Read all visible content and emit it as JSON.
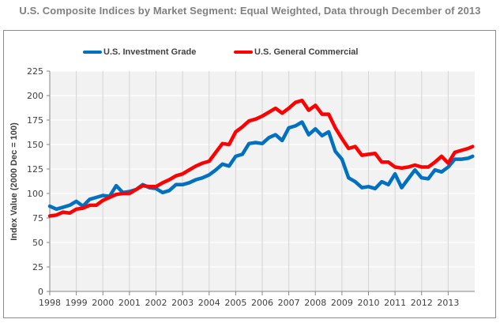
{
  "chart_data": {
    "type": "line",
    "title": "U.S. Composite Indices by Market Segment: Equal Weighted, Data through December of 2013",
    "xlabel": "",
    "ylabel": "Index Value (2000 Dec = 100)",
    "ylim": [
      0,
      225
    ],
    "yticks": [
      0,
      25,
      50,
      75,
      100,
      125,
      150,
      175,
      200,
      225
    ],
    "xlim": [
      1998,
      2014
    ],
    "xticks": [
      "1998",
      "1999",
      "2000",
      "2001",
      "2002",
      "2003",
      "2004",
      "2005",
      "2006",
      "2007",
      "2008",
      "2009",
      "2010",
      "2011",
      "2012",
      "2013"
    ],
    "grid": "on",
    "legend_position": "top",
    "series": [
      {
        "name": "U.S. Investment Grade",
        "color": "#0070c0",
        "x": [
          1998.0,
          1998.25,
          1998.5,
          1998.75,
          1999.0,
          1999.25,
          1999.5,
          1999.75,
          2000.0,
          2000.25,
          2000.5,
          2000.75,
          2001.0,
          2001.25,
          2001.5,
          2001.75,
          2002.0,
          2002.25,
          2002.5,
          2002.75,
          2003.0,
          2003.25,
          2003.5,
          2003.75,
          2004.0,
          2004.25,
          2004.5,
          2004.75,
          2005.0,
          2005.25,
          2005.5,
          2005.75,
          2006.0,
          2006.25,
          2006.5,
          2006.75,
          2007.0,
          2007.25,
          2007.5,
          2007.75,
          2008.0,
          2008.25,
          2008.5,
          2008.75,
          2009.0,
          2009.25,
          2009.5,
          2009.75,
          2010.0,
          2010.25,
          2010.5,
          2010.75,
          2011.0,
          2011.25,
          2011.5,
          2011.75,
          2012.0,
          2012.25,
          2012.5,
          2012.75,
          2013.0,
          2013.25,
          2013.5,
          2013.75,
          2013.92
        ],
        "values": [
          87,
          84,
          86,
          88,
          92,
          87,
          94,
          96,
          98,
          97,
          108,
          101,
          102,
          104,
          109,
          106,
          105,
          101,
          103,
          109,
          109,
          111,
          114,
          116,
          119,
          124,
          130,
          128,
          138,
          140,
          151,
          152,
          151,
          157,
          160,
          154,
          167,
          169,
          173,
          160,
          166,
          159,
          163,
          143,
          135,
          116,
          112,
          106,
          107,
          105,
          112,
          109,
          120,
          106,
          115,
          124,
          116,
          115,
          124,
          122,
          127,
          135,
          135,
          136,
          138
        ]
      },
      {
        "name": "U.S. General Commercial",
        "color": "#ff0000",
        "x": [
          1998.0,
          1998.25,
          1998.5,
          1998.75,
          1999.0,
          1999.25,
          1999.5,
          1999.75,
          2000.0,
          2000.25,
          2000.5,
          2000.75,
          2001.0,
          2001.25,
          2001.5,
          2001.75,
          2002.0,
          2002.25,
          2002.5,
          2002.75,
          2003.0,
          2003.25,
          2003.5,
          2003.75,
          2004.0,
          2004.25,
          2004.5,
          2004.75,
          2005.0,
          2005.25,
          2005.5,
          2005.75,
          2006.0,
          2006.25,
          2006.5,
          2006.75,
          2007.0,
          2007.25,
          2007.5,
          2007.75,
          2008.0,
          2008.25,
          2008.5,
          2008.75,
          2009.0,
          2009.25,
          2009.5,
          2009.75,
          2010.0,
          2010.25,
          2010.5,
          2010.75,
          2011.0,
          2011.25,
          2011.5,
          2011.75,
          2012.0,
          2012.25,
          2012.5,
          2012.75,
          2013.0,
          2013.25,
          2013.5,
          2013.75,
          2013.92
        ],
        "values": [
          77,
          78,
          81,
          80,
          84,
          85,
          88,
          88,
          93,
          96,
          99,
          100,
          100,
          104,
          108,
          107,
          107,
          111,
          114,
          118,
          120,
          124,
          128,
          131,
          133,
          142,
          151,
          150,
          163,
          168,
          174,
          176,
          179,
          183,
          187,
          182,
          187,
          193,
          195,
          185,
          190,
          181,
          181,
          167,
          156,
          146,
          148,
          139,
          140,
          141,
          132,
          132,
          127,
          126,
          127,
          129,
          127,
          127,
          132,
          138,
          131,
          142,
          144,
          146,
          148
        ]
      }
    ]
  }
}
